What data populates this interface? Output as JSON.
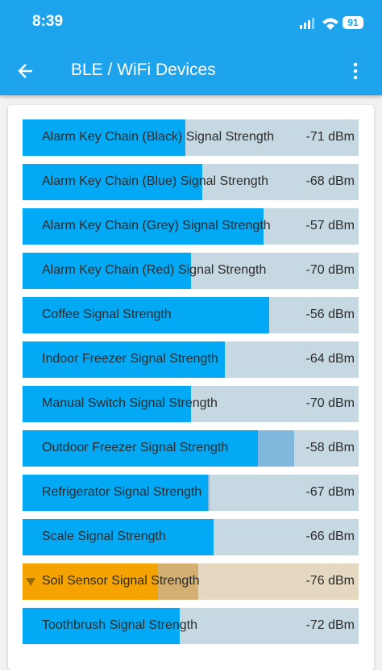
{
  "status_bar": {
    "time": "8:39",
    "battery": "91"
  },
  "header": {
    "title": "BLE / WiFi Devices"
  },
  "devices": [
    {
      "label": "Alarm Key Chain (Black) Signal Strength",
      "value": "-71 dBm"
    },
    {
      "label": "Alarm Key Chain (Blue) Signal Strength",
      "value": "-68 dBm"
    },
    {
      "label": "Alarm Key Chain (Grey) Signal Strength",
      "value": "-57 dBm"
    },
    {
      "label": "Alarm Key Chain (Red) Signal Strength",
      "value": "-70 dBm"
    },
    {
      "label": "Coffee Signal Strength",
      "value": "-56 dBm"
    },
    {
      "label": "Indoor Freezer Signal Strength",
      "value": "-64 dBm"
    },
    {
      "label": "Manual Switch Signal Strength",
      "value": "-70 dBm"
    },
    {
      "label": "Outdoor Freezer Signal Strength",
      "value": "-58 dBm"
    },
    {
      "label": "Refrigerator Signal Strength",
      "value": "-67 dBm"
    },
    {
      "label": "Scale Signal Strength",
      "value": "-66 dBm"
    },
    {
      "label": "Soil Sensor Signal Strength",
      "value": "-76 dBm"
    },
    {
      "label": "Toothbrush Signal Strength",
      "value": "-72 dBm"
    }
  ]
}
